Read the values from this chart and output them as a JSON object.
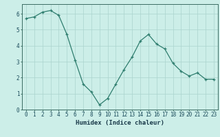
{
  "x": [
    0,
    1,
    2,
    3,
    4,
    5,
    6,
    7,
    8,
    9,
    10,
    11,
    12,
    13,
    14,
    15,
    16,
    17,
    18,
    19,
    20,
    21,
    22,
    23
  ],
  "y": [
    5.7,
    5.8,
    6.1,
    6.2,
    5.9,
    4.7,
    3.1,
    1.6,
    1.1,
    0.3,
    0.7,
    1.6,
    2.5,
    3.3,
    4.3,
    4.7,
    4.1,
    3.8,
    2.9,
    2.4,
    2.1,
    2.3,
    1.9,
    1.9
  ],
  "xlabel": "Humidex (Indice chaleur)",
  "xlim": [
    -0.5,
    23.5
  ],
  "ylim": [
    0,
    6.6
  ],
  "yticks": [
    0,
    1,
    2,
    3,
    4,
    5,
    6
  ],
  "xticks": [
    0,
    1,
    2,
    3,
    4,
    5,
    6,
    7,
    8,
    9,
    10,
    11,
    12,
    13,
    14,
    15,
    16,
    17,
    18,
    19,
    20,
    21,
    22,
    23
  ],
  "line_color": "#2e7d6e",
  "marker": "+",
  "marker_size": 3.5,
  "marker_lw": 0.9,
  "bg_color": "#cceee8",
  "grid_color": "#aad4ce",
  "spine_color": "#3a6b62",
  "tick_label_color": "#1a4a5a",
  "xlabel_color": "#1a3a4a",
  "xlabel_fontsize": 6.5,
  "tick_fontsize": 5.5,
  "line_width": 0.9
}
